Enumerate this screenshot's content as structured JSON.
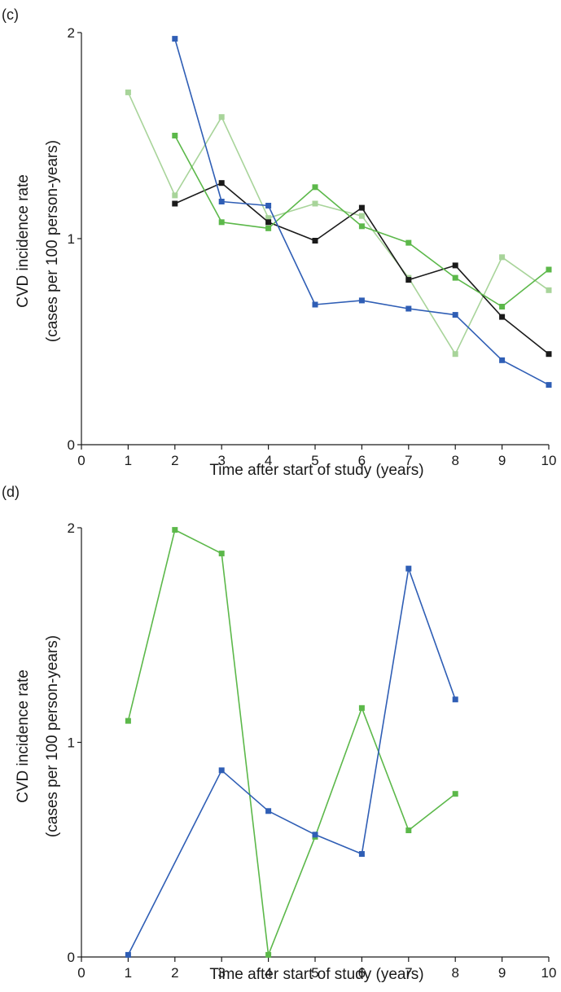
{
  "chart_data": [
    {
      "type": "line",
      "panel_label": "(c)",
      "xlabel": "Time after start of study (years)",
      "ylabel_line1": "CVD incidence rate",
      "ylabel_line2": "(cases per 100 person-years)",
      "xlim": [
        0,
        10
      ],
      "ylim": [
        0,
        2
      ],
      "xticks": [
        "0",
        "1",
        "2",
        "3",
        "4",
        "5",
        "6",
        "7",
        "8",
        "9",
        "10"
      ],
      "yticks": [
        "0",
        "1",
        "2"
      ],
      "grid": false,
      "series": [
        {
          "color": "#a8d49a",
          "x": [
            1,
            2,
            3,
            4,
            5,
            6,
            7,
            8,
            9,
            10
          ],
          "y": [
            1.71,
            1.21,
            1.59,
            1.1,
            1.17,
            1.11,
            0.81,
            0.44,
            0.91,
            0.75
          ]
        },
        {
          "color": "#1a1a1a",
          "x": [
            2,
            3,
            4,
            5,
            6,
            7,
            8,
            9,
            10
          ],
          "y": [
            1.17,
            1.27,
            1.08,
            0.99,
            1.15,
            0.8,
            0.87,
            0.62,
            0.44
          ]
        },
        {
          "color": "#5cb84a",
          "x": [
            2,
            3,
            4,
            5,
            6,
            7,
            8,
            9,
            10
          ],
          "y": [
            1.5,
            1.08,
            1.05,
            1.25,
            1.06,
            0.98,
            0.81,
            0.67,
            0.85
          ]
        },
        {
          "color": "#2f5eb5",
          "x": [
            2,
            3,
            4,
            5,
            6,
            7,
            8,
            9,
            10
          ],
          "y": [
            1.97,
            1.18,
            1.16,
            0.68,
            0.7,
            0.66,
            0.63,
            0.41,
            0.29
          ]
        }
      ]
    },
    {
      "type": "line",
      "panel_label": "(d)",
      "xlabel": "Time after start of study (years)",
      "ylabel_line1": "CVD incidence rate",
      "ylabel_line2": "(cases per 100 person-years)",
      "xlim": [
        0,
        10
      ],
      "ylim": [
        0,
        2
      ],
      "xticks": [
        "0",
        "1",
        "2",
        "3",
        "4",
        "5",
        "6",
        "7",
        "8",
        "9",
        "10"
      ],
      "yticks": [
        "0",
        "1",
        "2"
      ],
      "grid": false,
      "series": [
        {
          "color": "#5cb84a",
          "x": [
            1,
            2,
            3,
            4,
            5,
            6,
            7,
            8
          ],
          "y": [
            1.1,
            1.99,
            1.88,
            0.01,
            0.56,
            1.16,
            0.59,
            0.76
          ]
        },
        {
          "color": "#2f5eb5",
          "x": [
            1,
            3,
            4,
            5,
            6,
            7,
            8
          ],
          "y": [
            0.01,
            0.87,
            0.68,
            0.57,
            0.48,
            1.81,
            1.2
          ]
        }
      ]
    }
  ]
}
